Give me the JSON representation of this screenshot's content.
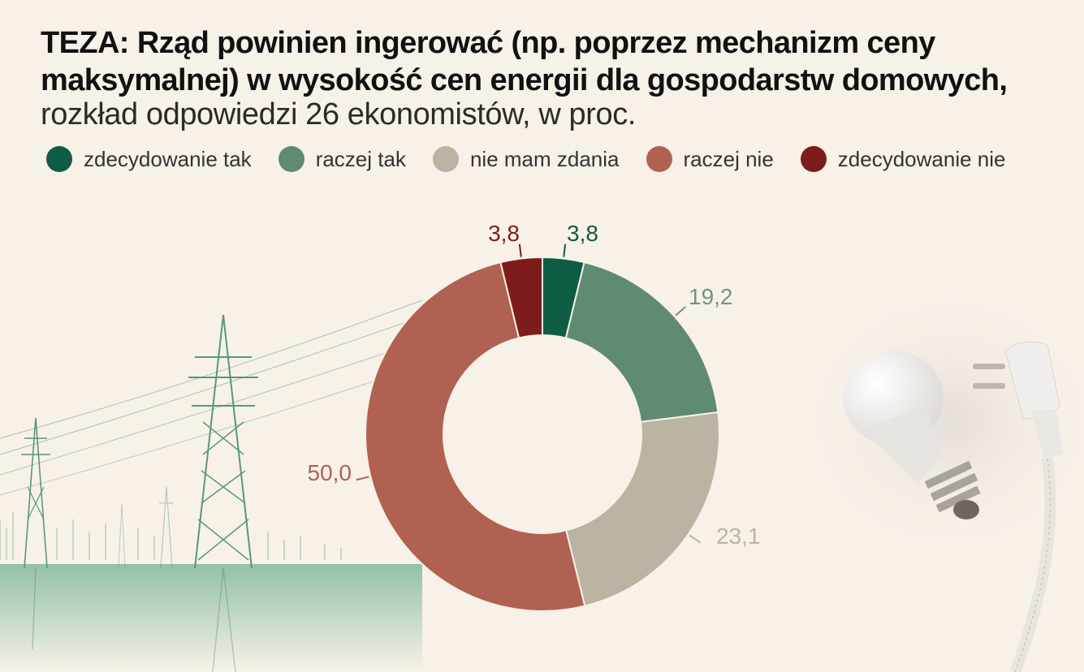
{
  "header": {
    "title": "TEZA: Rząd powinien ingerować (np. poprzez mechanizm ceny maksymalnej) w wysokość cen energii dla gospodarstw domowych,",
    "subtitle": "rozkład odpowiedzi 26 ekonomistów, w proc."
  },
  "legend": [
    {
      "label": "zdecydowanie tak",
      "color": "#0f5c45"
    },
    {
      "label": "raczej tak",
      "color": "#5f8a74"
    },
    {
      "label": "nie mam zdania",
      "color": "#bab4a3"
    },
    {
      "label": "raczej nie",
      "color": "#b06152"
    },
    {
      "label": "zdecydowanie nie",
      "color": "#7d1d1b"
    }
  ],
  "chart_data": {
    "type": "pie",
    "style": "donut",
    "categories": [
      "zdecydowanie tak",
      "raczej tak",
      "nie mam zdania",
      "raczej nie",
      "zdecydowanie nie"
    ],
    "values": [
      3.8,
      19.2,
      23.1,
      50.0,
      3.8
    ],
    "labels": [
      "3,8",
      "19,2",
      "23,1",
      "50,0",
      "3,8"
    ],
    "colors": [
      "#0f5c45",
      "#5f8a74",
      "#bab4a3",
      "#b06152",
      "#7d1d1b"
    ],
    "label_colors": [
      "#0f5c45",
      "#6f9580",
      "#bab4a3",
      "#b06152",
      "#7d1d1b"
    ],
    "legend_position": "top"
  }
}
